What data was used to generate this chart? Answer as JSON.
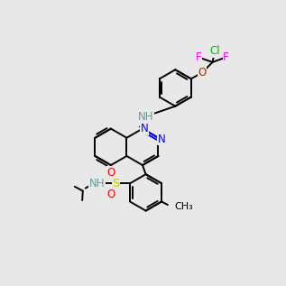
{
  "bg_color": "#e8e8e8",
  "colors": {
    "C": "#000000",
    "N": "#0000ff",
    "O": "#ff0000",
    "S": "#cccc00",
    "F": "#ff00ff",
    "Cl": "#00bb00",
    "H": "#6a9a9a"
  },
  "bond_color": "#000000",
  "bond_lw": 1.4,
  "font_size": 8.5
}
